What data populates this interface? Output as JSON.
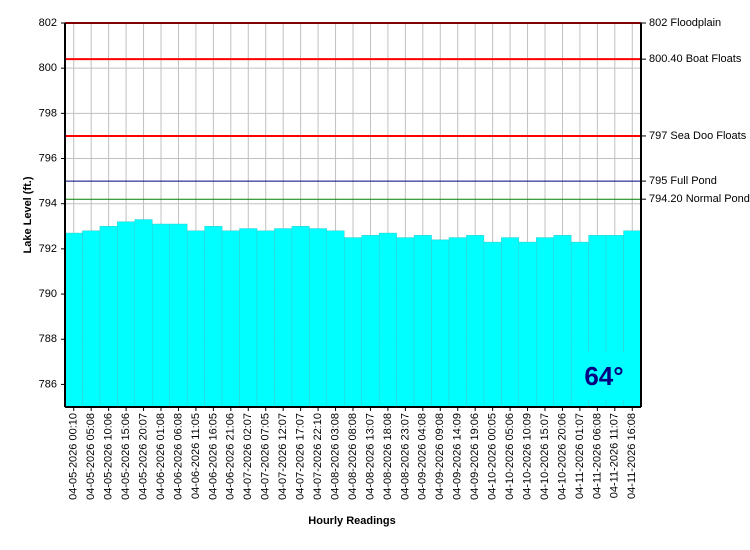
{
  "chart_data": {
    "type": "bar",
    "y_label": "Lake Level (ft.)",
    "x_label": "Hourly Readings",
    "categories": [
      "04-05-2026 00:10",
      "04-05-2026 05:08",
      "04-05-2026 10:06",
      "04-05-2026 15:06",
      "04-05-2026 20:07",
      "04-06-2026 01:08",
      "04-06-2026 06:08",
      "04-06-2026 11:05",
      "04-06-2026 16:05",
      "04-06-2026 21:06",
      "04-07-2026 02:07",
      "04-07-2026 07:05",
      "04-07-2026 12:07",
      "04-07-2026 17:07",
      "04-07-2026 22:10",
      "04-08-2026 03:08",
      "04-08-2026 08:08",
      "04-08-2026 13:07",
      "04-08-2026 18:08",
      "04-08-2026 23:07",
      "04-09-2026 04:08",
      "04-09-2026 09:08",
      "04-09-2026 14:09",
      "04-09-2026 19:06",
      "04-10-2026 00:05",
      "04-10-2026 05:06",
      "04-10-2026 10:09",
      "04-10-2026 15:07",
      "04-10-2026 20:06",
      "04-11-2026 01:07",
      "04-11-2026 06:08",
      "04-11-2026 11:07",
      "04-11-2026 16:08"
    ],
    "values": [
      792.7,
      792.8,
      793.0,
      793.2,
      793.3,
      793.1,
      793.1,
      792.8,
      793.0,
      792.8,
      792.9,
      792.8,
      792.9,
      793.0,
      792.9,
      792.8,
      792.5,
      792.6,
      792.7,
      792.5,
      792.6,
      792.4,
      792.5,
      792.6,
      792.3,
      792.5,
      792.3,
      792.5,
      792.6,
      792.3,
      792.6,
      792.6,
      792.8
    ],
    "color": "#00ffff",
    "ylim": [
      785,
      802
    ],
    "yticks": [
      786,
      788,
      790,
      792,
      794,
      796,
      798,
      800,
      802
    ],
    "grid": true,
    "reference_lines": [
      {
        "value": 802,
        "label": "802 Floodplain",
        "color": "#ff0000"
      },
      {
        "value": 800.4,
        "label": "800.40 Boat Floats",
        "color": "#ff0000"
      },
      {
        "value": 797,
        "label": "797 Sea Doo Floats",
        "color": "#ff0000"
      },
      {
        "value": 795,
        "label": "795 Full Pond",
        "color": "#000080"
      },
      {
        "value": 794.2,
        "label": "794.20 Normal Pond",
        "color": "#008000"
      }
    ],
    "badge": "64°"
  }
}
